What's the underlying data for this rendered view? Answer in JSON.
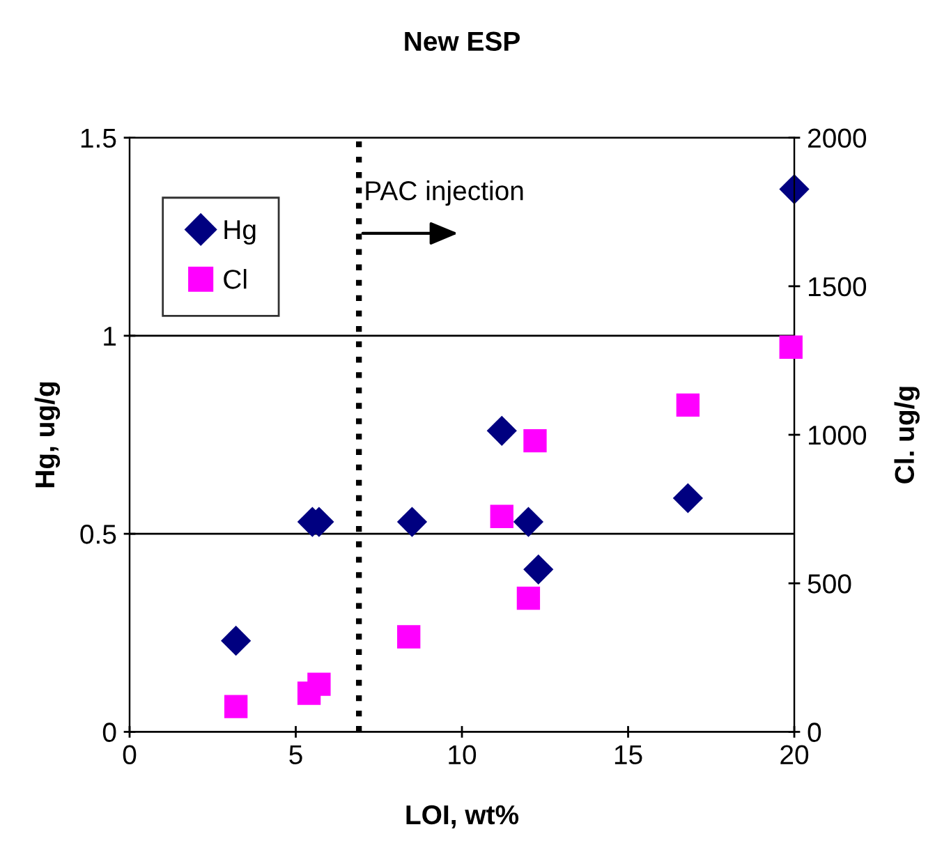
{
  "chart_data": {
    "type": "scatter",
    "title": "New ESP",
    "xlabel": "LOI, wt%",
    "ylabel": "Hg, ug/g",
    "y2label": "Cl. ug/g",
    "series": [
      {
        "name": "Hg",
        "color": "#000080",
        "marker": "diamond",
        "x": [
          3.2,
          5.5,
          5.7,
          8.5,
          11.2,
          12.0,
          12.3,
          16.8,
          20.0
        ],
        "values": [
          0.23,
          0.53,
          0.53,
          0.53,
          0.76,
          0.53,
          0.41,
          0.59,
          1.37
        ]
      },
      {
        "name": "Cl",
        "color": "#ff00ff",
        "marker": "square",
        "axis": "y2",
        "x": [
          3.2,
          5.4,
          5.7,
          8.4,
          11.2,
          12.0,
          12.2,
          16.8,
          19.9
        ],
        "values": [
          85,
          130,
          160,
          320,
          725,
          450,
          980,
          1100,
          1295
        ]
      }
    ],
    "xlim": [
      0,
      20
    ],
    "xticks": [
      0,
      5,
      10,
      15,
      20
    ],
    "ylim": [
      0,
      1.5
    ],
    "yticks": [
      0,
      0.5,
      1,
      1.5
    ],
    "y2lim": [
      0,
      2000
    ],
    "y2ticks": [
      0,
      500,
      1000,
      1500,
      2000
    ],
    "ref_lines": [
      {
        "axis": "x",
        "value": 6.9,
        "label": "PAC injection",
        "color": "#000000",
        "line_style": "dotted"
      }
    ],
    "grid": "y",
    "legend": "top left"
  }
}
